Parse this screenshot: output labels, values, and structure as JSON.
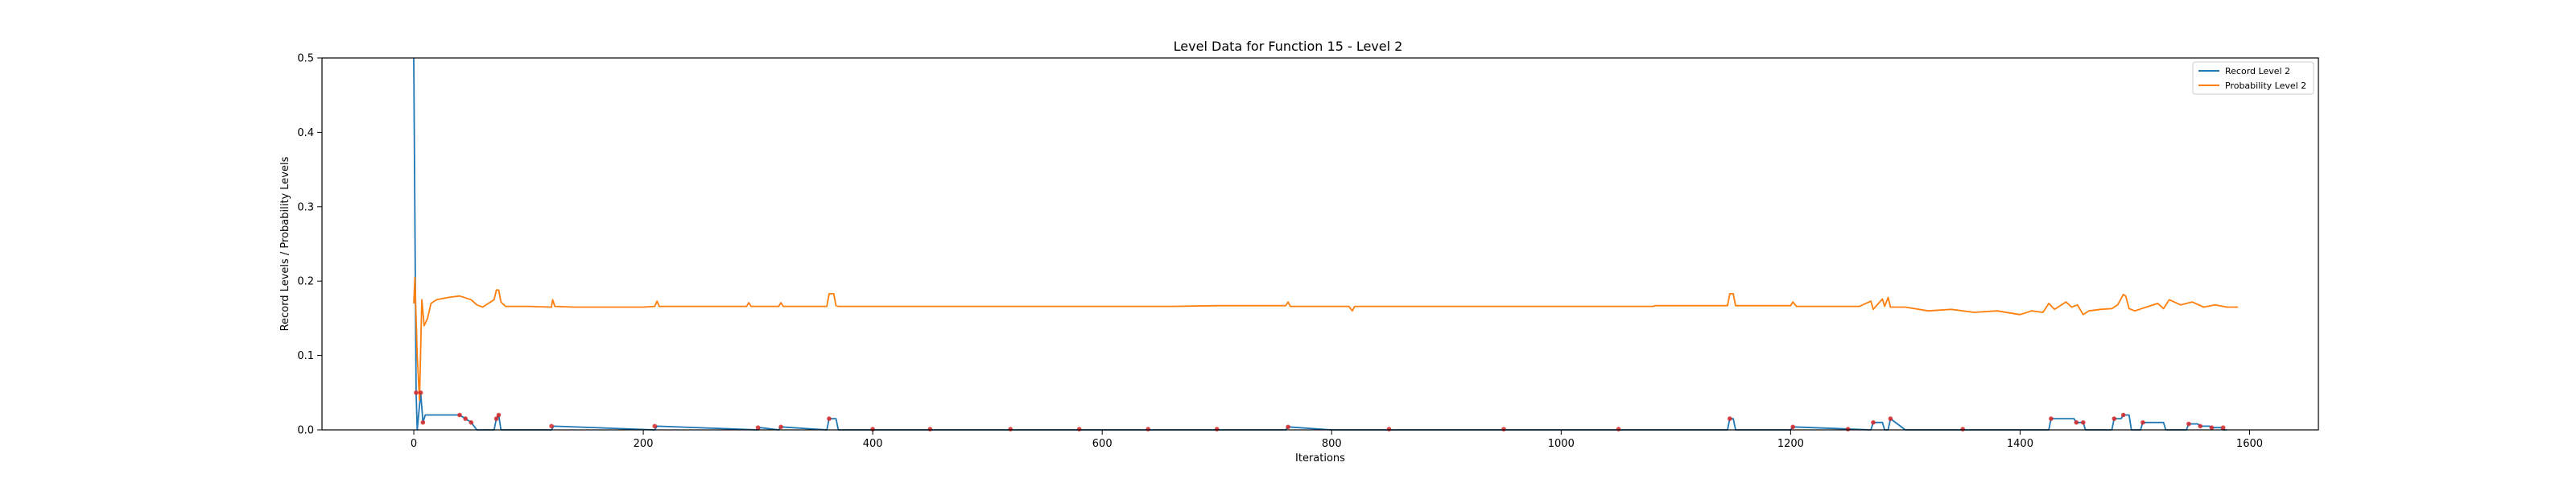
{
  "chart_data": {
    "type": "line",
    "title": "Level Data for Function 15 - Level 2",
    "xlabel": "Iterations",
    "ylabel": "Record Levels / Probability Levels",
    "xlim": [
      -80,
      1660
    ],
    "ylim": [
      0,
      0.5
    ],
    "xticks": [
      0,
      200,
      400,
      600,
      800,
      1000,
      1200,
      1400,
      1600
    ],
    "yticks": [
      0.0,
      0.1,
      0.2,
      0.3,
      0.4,
      0.5
    ],
    "xtick_labels": [
      "0",
      "200",
      "400",
      "600",
      "800",
      "1000",
      "1200",
      "1400",
      "1600"
    ],
    "ytick_labels": [
      "0.0",
      "0.1",
      "0.2",
      "0.3",
      "0.4",
      "0.5"
    ],
    "grid": false,
    "legend_position": "top-right",
    "legend": [
      "Record Level 2",
      "Probability Level 2"
    ],
    "series": [
      {
        "name": "Record Level 2",
        "color": "#1f77b4",
        "x": [
          0,
          2,
          3,
          6,
          8,
          10,
          40,
          45,
          50,
          55,
          70,
          72,
          74,
          76,
          120,
          122,
          210,
          212,
          300,
          302,
          318,
          320,
          360,
          362,
          368,
          370,
          400,
          500,
          600,
          700,
          760,
          762,
          800,
          900,
          1000,
          1100,
          1145,
          1147,
          1150,
          1152,
          1200,
          1202,
          1270,
          1272,
          1280,
          1282,
          1285,
          1287,
          1300,
          1400,
          1425,
          1427,
          1447,
          1449,
          1455,
          1457,
          1480,
          1482,
          1488,
          1490,
          1495,
          1497,
          1505,
          1507,
          1525,
          1527,
          1545,
          1547,
          1555,
          1557,
          1565,
          1567,
          1575,
          1577,
          1580
        ],
        "y": [
          0.5,
          0.05,
          0.0,
          0.05,
          0.01,
          0.02,
          0.02,
          0.015,
          0.01,
          0.0,
          0.0,
          0.015,
          0.02,
          0.0,
          0.0,
          0.005,
          0.0,
          0.005,
          0.0,
          0.003,
          0.0,
          0.004,
          0.0,
          0.015,
          0.015,
          0.0,
          0.0,
          0.0,
          0.0,
          0.0,
          0.0,
          0.004,
          0.0,
          0.0,
          0.0,
          0.0,
          0.0,
          0.015,
          0.015,
          0.0,
          0.0,
          0.004,
          0.0,
          0.01,
          0.01,
          0.0,
          0.0,
          0.015,
          0.0,
          0.0,
          0.0,
          0.015,
          0.015,
          0.01,
          0.01,
          0.0,
          0.0,
          0.015,
          0.015,
          0.02,
          0.02,
          0.0,
          0.0,
          0.01,
          0.01,
          0.0,
          0.0,
          0.008,
          0.008,
          0.005,
          0.005,
          0.003,
          0.003,
          0.0,
          0.0
        ]
      },
      {
        "name": "Probability Level 2",
        "color": "#ff7f0e",
        "x": [
          0,
          1,
          3,
          5,
          7,
          9,
          12,
          15,
          20,
          30,
          40,
          50,
          55,
          60,
          65,
          70,
          72,
          74,
          76,
          80,
          100,
          120,
          121,
          123,
          140,
          200,
          210,
          212,
          214,
          250,
          290,
          292,
          294,
          318,
          320,
          322,
          360,
          362,
          366,
          368,
          370,
          380,
          500,
          600,
          660,
          700,
          760,
          762,
          764,
          800,
          815,
          818,
          820,
          900,
          1000,
          1080,
          1082,
          1100,
          1145,
          1147,
          1150,
          1152,
          1200,
          1202,
          1205,
          1260,
          1270,
          1272,
          1280,
          1282,
          1285,
          1287,
          1300,
          1320,
          1340,
          1360,
          1380,
          1400,
          1410,
          1420,
          1425,
          1430,
          1440,
          1445,
          1450,
          1455,
          1460,
          1470,
          1480,
          1485,
          1490,
          1492,
          1495,
          1500,
          1510,
          1520,
          1525,
          1530,
          1540,
          1550,
          1560,
          1570,
          1580,
          1590
        ],
        "y": [
          0.17,
          0.205,
          0.1,
          0.04,
          0.175,
          0.14,
          0.15,
          0.17,
          0.175,
          0.178,
          0.18,
          0.175,
          0.168,
          0.165,
          0.17,
          0.175,
          0.188,
          0.188,
          0.172,
          0.166,
          0.166,
          0.165,
          0.175,
          0.166,
          0.165,
          0.165,
          0.166,
          0.173,
          0.166,
          0.166,
          0.166,
          0.171,
          0.166,
          0.166,
          0.171,
          0.166,
          0.166,
          0.183,
          0.183,
          0.167,
          0.166,
          0.166,
          0.166,
          0.166,
          0.166,
          0.167,
          0.167,
          0.172,
          0.166,
          0.166,
          0.166,
          0.16,
          0.166,
          0.166,
          0.166,
          0.166,
          0.167,
          0.167,
          0.167,
          0.183,
          0.183,
          0.167,
          0.167,
          0.172,
          0.166,
          0.166,
          0.173,
          0.162,
          0.176,
          0.166,
          0.178,
          0.165,
          0.165,
          0.16,
          0.162,
          0.158,
          0.16,
          0.155,
          0.16,
          0.158,
          0.17,
          0.162,
          0.172,
          0.165,
          0.168,
          0.155,
          0.16,
          0.162,
          0.163,
          0.168,
          0.182,
          0.18,
          0.163,
          0.16,
          0.165,
          0.17,
          0.163,
          0.175,
          0.168,
          0.172,
          0.165,
          0.168,
          0.165,
          0.165
        ]
      }
    ],
    "markers": {
      "name": "record points",
      "color": "#d62728",
      "x": [
        2,
        6,
        8,
        40,
        45,
        50,
        72,
        74,
        120,
        210,
        300,
        320,
        362,
        762,
        1147,
        1202,
        1272,
        1287,
        1427,
        1449,
        1455,
        1482,
        1490,
        1507,
        1547,
        1557,
        1567,
        1577,
        400,
        450,
        520,
        580,
        640,
        700,
        850,
        950,
        1050,
        1250,
        1350
      ],
      "y": [
        0.05,
        0.05,
        0.01,
        0.02,
        0.015,
        0.01,
        0.015,
        0.02,
        0.005,
        0.005,
        0.003,
        0.004,
        0.015,
        0.004,
        0.015,
        0.004,
        0.01,
        0.015,
        0.015,
        0.01,
        0.01,
        0.015,
        0.02,
        0.01,
        0.008,
        0.005,
        0.003,
        0.003,
        0.001,
        0.001,
        0.001,
        0.001,
        0.001,
        0.001,
        0.001,
        0.001,
        0.001,
        0.001,
        0.001
      ]
    }
  }
}
